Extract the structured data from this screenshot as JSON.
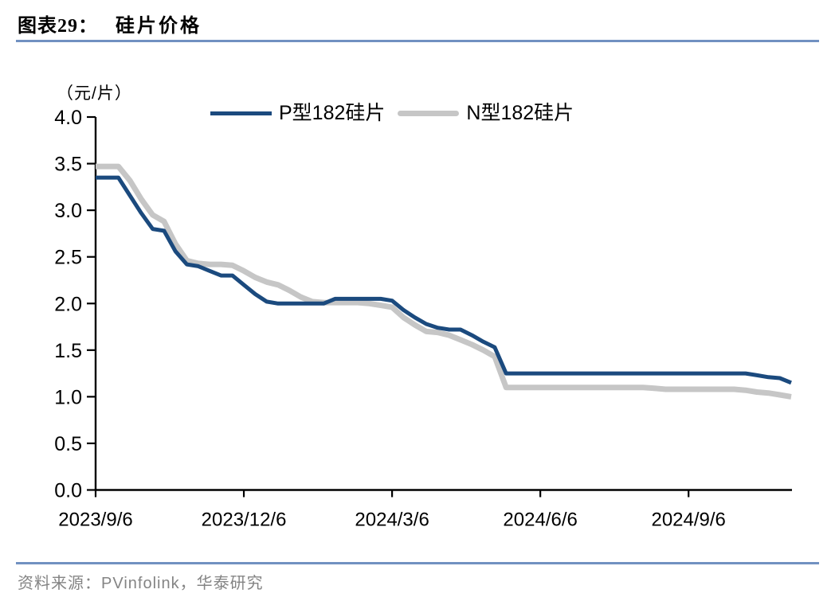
{
  "page": {
    "figure_label": "图表29：",
    "figure_title": "硅片价格",
    "source_text": "资料来源：PVinfolink，华泰研究"
  },
  "chart_data": {
    "type": "line",
    "title": "硅片价格",
    "unit_label": "（元/片）",
    "xlabel": "",
    "ylabel": "元/片",
    "ylim": [
      0,
      4
    ],
    "y_tick_step": 0.5,
    "y_tick_labels": [
      "0.0",
      "0.5",
      "1.0",
      "1.5",
      "2.0",
      "2.5",
      "3.0",
      "3.5",
      "4.0"
    ],
    "grid": false,
    "legend_position": "top-center",
    "colors": {
      "p_type": "#1B4A7E",
      "n_type": "#C6C6C6",
      "axis": "#000000",
      "rule_blue": "#7191C1",
      "source_gray": "#848484"
    },
    "x_ticks": [
      {
        "week": 0,
        "label": "2023/9/6"
      },
      {
        "week": 13,
        "label": "2023/12/6"
      },
      {
        "week": 26,
        "label": "2024/3/6"
      },
      {
        "week": 39,
        "label": "2024/6/6"
      },
      {
        "week": 52,
        "label": "2024/9/6"
      }
    ],
    "x": [
      "2023/9/6",
      "2023/9/13",
      "2023/9/20",
      "2023/9/27",
      "2023/10/4",
      "2023/10/11",
      "2023/10/18",
      "2023/10/25",
      "2023/11/1",
      "2023/11/8",
      "2023/11/15",
      "2023/11/22",
      "2023/11/29",
      "2023/12/6",
      "2023/12/13",
      "2023/12/20",
      "2023/12/27",
      "2024/1/3",
      "2024/1/10",
      "2024/1/17",
      "2024/1/24",
      "2024/1/31",
      "2024/2/7",
      "2024/2/14",
      "2024/2/21",
      "2024/2/28",
      "2024/3/6",
      "2024/3/13",
      "2024/3/20",
      "2024/3/27",
      "2024/4/3",
      "2024/4/10",
      "2024/4/17",
      "2024/4/24",
      "2024/5/1",
      "2024/5/8",
      "2024/5/15",
      "2024/5/22",
      "2024/5/29",
      "2024/6/5",
      "2024/6/12",
      "2024/6/19",
      "2024/6/26",
      "2024/7/3",
      "2024/7/10",
      "2024/7/17",
      "2024/7/24",
      "2024/7/31",
      "2024/8/7",
      "2024/8/14",
      "2024/8/21",
      "2024/8/28",
      "2024/9/4",
      "2024/9/11",
      "2024/9/18",
      "2024/9/25",
      "2024/10/2",
      "2024/10/9",
      "2024/10/16",
      "2024/10/23",
      "2024/10/30",
      "2024/11/6"
    ],
    "series": [
      {
        "name": "P型182硅片",
        "color": "#1B4A7E",
        "values": [
          3.35,
          3.35,
          3.35,
          3.16,
          2.97,
          2.8,
          2.78,
          2.56,
          2.42,
          2.4,
          2.35,
          2.3,
          2.3,
          2.2,
          2.1,
          2.02,
          2.0,
          2.0,
          2.0,
          2.0,
          2.0,
          2.05,
          2.05,
          2.05,
          2.05,
          2.05,
          2.03,
          1.93,
          1.85,
          1.78,
          1.74,
          1.72,
          1.72,
          1.66,
          1.59,
          1.53,
          1.25,
          1.25,
          1.25,
          1.25,
          1.25,
          1.25,
          1.25,
          1.25,
          1.25,
          1.25,
          1.25,
          1.25,
          1.25,
          1.25,
          1.25,
          1.25,
          1.25,
          1.25,
          1.25,
          1.25,
          1.25,
          1.25,
          1.23,
          1.21,
          1.2,
          1.15
        ]
      },
      {
        "name": "N型182硅片",
        "color": "#C6C6C6",
        "values": [
          3.47,
          3.47,
          3.47,
          3.32,
          3.12,
          2.95,
          2.88,
          2.64,
          2.46,
          2.43,
          2.42,
          2.42,
          2.41,
          2.35,
          2.28,
          2.23,
          2.2,
          2.14,
          2.07,
          2.02,
          2.01,
          2.01,
          2.01,
          2.01,
          2.0,
          1.98,
          1.96,
          1.85,
          1.77,
          1.7,
          1.69,
          1.66,
          1.61,
          1.56,
          1.5,
          1.43,
          1.1,
          1.1,
          1.1,
          1.1,
          1.1,
          1.1,
          1.1,
          1.1,
          1.1,
          1.1,
          1.1,
          1.1,
          1.1,
          1.09,
          1.08,
          1.08,
          1.08,
          1.08,
          1.08,
          1.08,
          1.08,
          1.07,
          1.05,
          1.04,
          1.02,
          1.0
        ]
      }
    ]
  }
}
